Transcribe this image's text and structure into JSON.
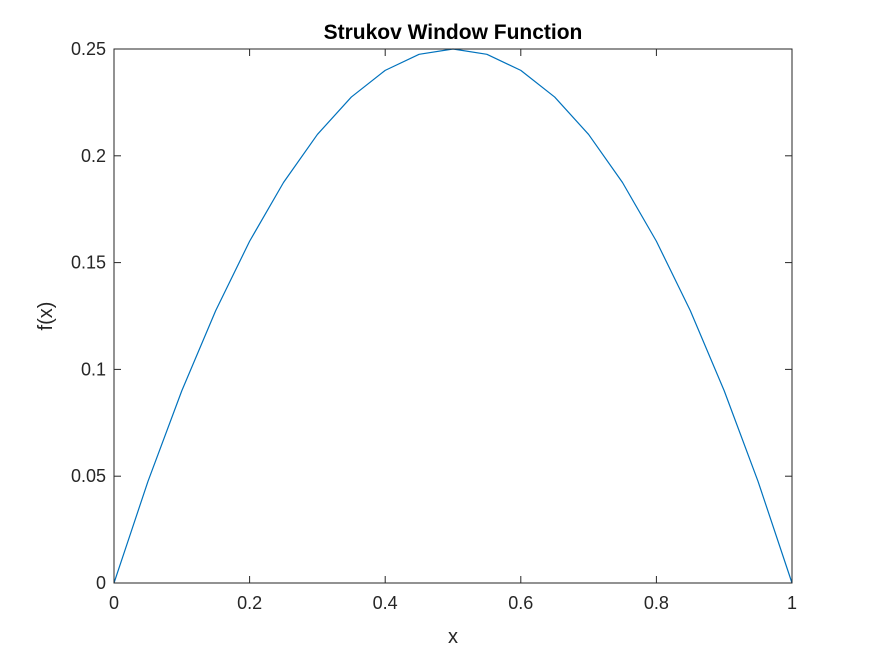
{
  "chart_data": {
    "type": "line",
    "title": "Strukov Window Function",
    "xlabel": "x",
    "ylabel": "f(x)",
    "xlim": [
      0,
      1
    ],
    "ylim": [
      0,
      0.25
    ],
    "xticks": [
      "0",
      "0.2",
      "0.4",
      "0.6",
      "0.8",
      "1"
    ],
    "yticks": [
      "0",
      "0.05",
      "0.1",
      "0.15",
      "0.2",
      "0.25"
    ],
    "grid": false,
    "box": true,
    "series": [
      {
        "color": "#0072bd",
        "x": [
          0,
          0.05,
          0.1,
          0.15,
          0.2,
          0.25,
          0.3,
          0.35,
          0.4,
          0.45,
          0.5,
          0.55,
          0.6,
          0.65,
          0.7,
          0.75,
          0.8,
          0.85,
          0.9,
          0.95,
          1
        ],
        "y": [
          0,
          0.0475,
          0.09,
          0.1275,
          0.16,
          0.1875,
          0.21,
          0.2275,
          0.24,
          0.2475,
          0.25,
          0.2475,
          0.24,
          0.2275,
          0.21,
          0.1875,
          0.16,
          0.1275,
          0.09,
          0.0475,
          0
        ]
      }
    ]
  }
}
